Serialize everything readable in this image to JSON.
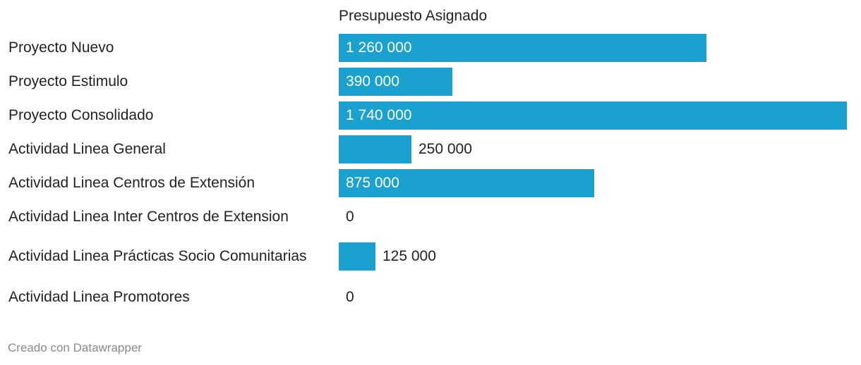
{
  "header": {
    "column_title": "Presupuesto Asignado"
  },
  "footer": {
    "credit": "Creado con Datawrapper"
  },
  "chart_data": {
    "type": "bar",
    "orientation": "horizontal",
    "categories": [
      "Proyecto Nuevo",
      "Proyecto Estimulo",
      "Proyecto Consolidado",
      "Actividad Linea General",
      "Actividad Linea Centros de Extensión",
      "Actividad Linea Inter Centros de Extension",
      "Actividad Linea Prácticas Socio Comunitarias",
      "Actividad Linea Promotores"
    ],
    "values": [
      1260000,
      390000,
      1740000,
      250000,
      875000,
      0,
      125000,
      0
    ],
    "value_labels": [
      "1 260 000",
      "390 000",
      "1 740 000",
      "250 000",
      "875 000",
      "0",
      "125 000",
      "0"
    ],
    "title": "",
    "xlabel": "",
    "ylabel": "",
    "xlim": [
      0,
      1740000
    ],
    "grid": false,
    "legend": "none",
    "bar_color": "#1aa1cf"
  }
}
